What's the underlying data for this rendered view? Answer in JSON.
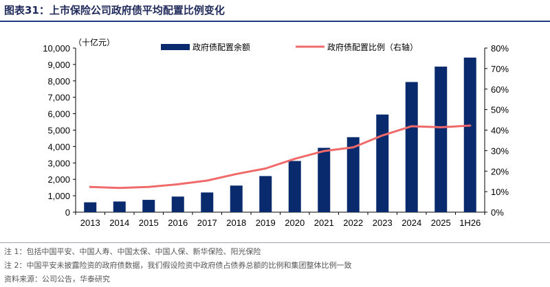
{
  "header": {
    "title": "图表31：上市保险公司政府债平均配置比例变化"
  },
  "notes": {
    "note1": "注 1：包括中国平安、中国人寿、中国太保、中国人保、新华保险、阳光保险",
    "note2": "注 2：中国平安未披露险资的政府债数据，我们假设险资中政府债占债券总额的比例和集团整体比例一致",
    "source": "资料来源：公司公告，华泰研究"
  },
  "colors": {
    "bar": "#0a2a6e",
    "line": "#f06a6a",
    "axis": "#000000"
  },
  "chart_data": {
    "type": "bar",
    "categories": [
      "2013",
      "2014",
      "2015",
      "2016",
      "2017",
      "2018",
      "2019",
      "2020",
      "2021",
      "2022",
      "2023",
      "2024",
      "2025",
      "1H26"
    ],
    "series": [
      {
        "name": "政府债配置余额",
        "kind": "bar",
        "axis": "left",
        "values": [
          600,
          650,
          750,
          950,
          1200,
          1620,
          2200,
          3120,
          3920,
          4570,
          5950,
          7930,
          8870,
          9420
        ]
      },
      {
        "name": "政府债配置比例（右轴）",
        "kind": "line",
        "axis": "right",
        "values": [
          12.3,
          11.8,
          12.3,
          13.6,
          15.4,
          18.6,
          21.3,
          26.0,
          29.8,
          31.6,
          37.4,
          41.9,
          41.4,
          42.2
        ]
      }
    ],
    "ylabel": "（十亿元）",
    "ylim": [
      0,
      10000
    ],
    "yticks": [
      "0",
      "1,000",
      "2,000",
      "3,000",
      "4,000",
      "5,000",
      "6,000",
      "7,000",
      "8,000",
      "9,000",
      "10,000"
    ],
    "y2lim": [
      0,
      80
    ],
    "y2ticks": [
      "0%",
      "10%",
      "20%",
      "30%",
      "40%",
      "50%",
      "60%",
      "70%",
      "80%"
    ],
    "legend": "top-center",
    "grid": false
  }
}
